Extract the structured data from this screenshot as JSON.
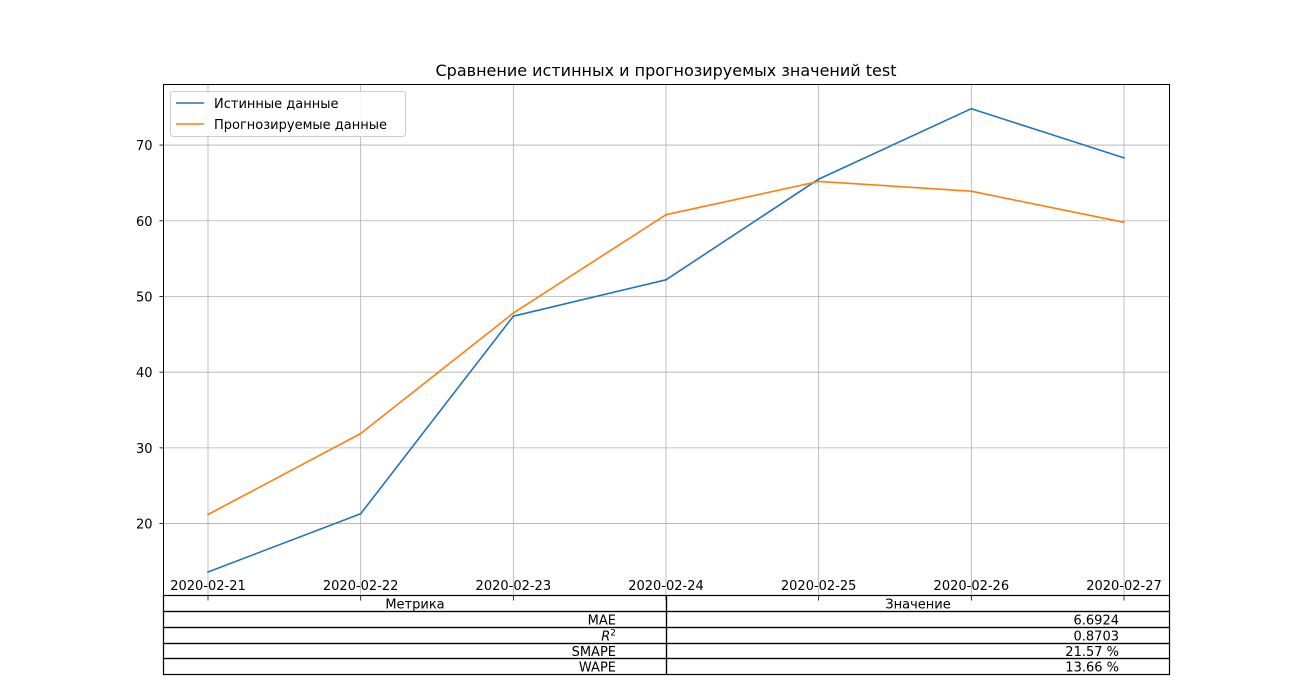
{
  "chart_data": {
    "type": "line",
    "title": "Сравнение истинных и прогнозируемых значений test",
    "xlabel": "",
    "ylabel": "",
    "x": [
      "2020-02-21",
      "2020-02-22",
      "2020-02-23",
      "2020-02-24",
      "2020-02-25",
      "2020-02-26",
      "2020-02-27"
    ],
    "series": [
      {
        "name": "Истинные данные",
        "color": "#1f77b4",
        "values": [
          13.6,
          21.3,
          47.4,
          52.2,
          65.5,
          74.8,
          68.3
        ]
      },
      {
        "name": "Прогнозируемые данные",
        "color": "#ff7f0e",
        "values": [
          21.2,
          31.9,
          47.8,
          60.8,
          65.2,
          63.9,
          59.8
        ]
      }
    ],
    "ylim": [
      10.5,
      78.0
    ],
    "yticks": [
      20,
      30,
      40,
      50,
      60,
      70
    ],
    "grid": true,
    "legend_position": "top-left"
  },
  "metrics_table": {
    "headers": [
      "Метрика",
      "Значение"
    ],
    "rows": [
      {
        "metric": "MAE",
        "value": "6.6924"
      },
      {
        "metric": "R^2",
        "value": "0.8703"
      },
      {
        "metric": "SMAPE",
        "value": "21.57 %"
      },
      {
        "metric": "WAPE",
        "value": "13.66 %"
      }
    ]
  }
}
